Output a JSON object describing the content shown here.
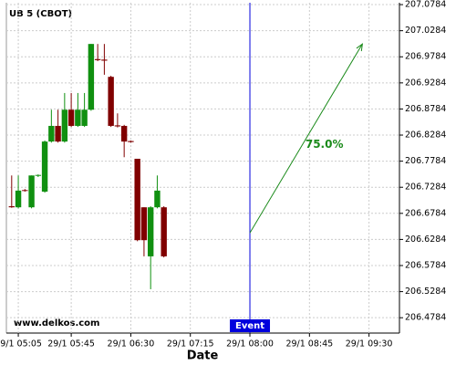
{
  "chart_data": {
    "type": "candlestick",
    "title": "UB 5 (CBOT)",
    "watermark": "www.delkos.com",
    "xlabel": "Date",
    "x": [
      "29/1 05:00",
      "29/1 05:05",
      "29/1 05:10",
      "29/1 05:15",
      "29/1 05:20",
      "29/1 05:25",
      "29/1 05:30",
      "29/1 05:35",
      "29/1 05:40",
      "29/1 05:45",
      "29/1 05:50",
      "29/1 05:55",
      "29/1 06:00",
      "29/1 06:05",
      "29/1 06:10",
      "29/1 06:15",
      "29/1 06:20",
      "29/1 06:25",
      "29/1 06:30",
      "29/1 06:35",
      "29/1 06:40",
      "29/1 06:45",
      "29/1 06:50",
      "29/1 06:55"
    ],
    "open": [
      206.692,
      206.69,
      206.723,
      206.69,
      206.751,
      206.72,
      206.816,
      206.846,
      206.816,
      206.877,
      206.846,
      206.846,
      206.877,
      206.974,
      206.973,
      206.94,
      206.847,
      206.846,
      206.817,
      206.783,
      206.69,
      206.596,
      206.69,
      206.69
    ],
    "high": [
      206.751,
      206.751,
      206.725,
      206.751,
      206.753,
      206.818,
      206.877,
      206.877,
      206.909,
      206.909,
      206.909,
      206.909,
      207.003,
      207.003,
      207.003,
      206.942,
      206.87,
      206.848,
      206.818,
      206.783,
      206.69,
      206.692,
      206.751,
      206.692
    ],
    "low": [
      206.689,
      206.688,
      206.72,
      206.688,
      206.748,
      206.718,
      206.814,
      206.814,
      206.814,
      206.844,
      206.844,
      206.844,
      206.875,
      206.97,
      206.944,
      206.844,
      206.843,
      206.786,
      206.814,
      206.625,
      206.596,
      206.533,
      206.688,
      206.594
    ],
    "close": [
      206.69,
      206.722,
      206.722,
      206.751,
      206.752,
      206.816,
      206.846,
      206.816,
      206.877,
      206.846,
      206.877,
      206.877,
      207.003,
      206.972,
      206.971,
      206.846,
      206.845,
      206.816,
      206.815,
      206.627,
      206.627,
      206.69,
      206.722,
      206.596
    ],
    "up_color": "#109010",
    "down_color": "#800000",
    "ylim": [
      206.449,
      207.082
    ],
    "yticks": [
      206.4784,
      206.5284,
      206.5784,
      206.6284,
      206.6784,
      206.7284,
      206.7784,
      206.8284,
      206.8784,
      206.9284,
      206.9784,
      207.0284,
      207.0784
    ],
    "xlim": [
      "29/1 04:56",
      "29/1 09:53"
    ],
    "xticks": [
      "29/1 05:05",
      "29/1 05:45",
      "29/1 06:30",
      "29/1 07:15",
      "29/1 08:00",
      "29/1 08:45",
      "29/1 09:30"
    ],
    "grid": true,
    "event": {
      "x": "29/1 08:00",
      "label": "Event",
      "color": "#0000dd"
    },
    "forecast": {
      "x": [
        "29/1 08:00",
        "29/1 09:25"
      ],
      "values": [
        206.641,
        207.003
      ],
      "label": "75.0%",
      "color": "#1a8a1a"
    }
  }
}
